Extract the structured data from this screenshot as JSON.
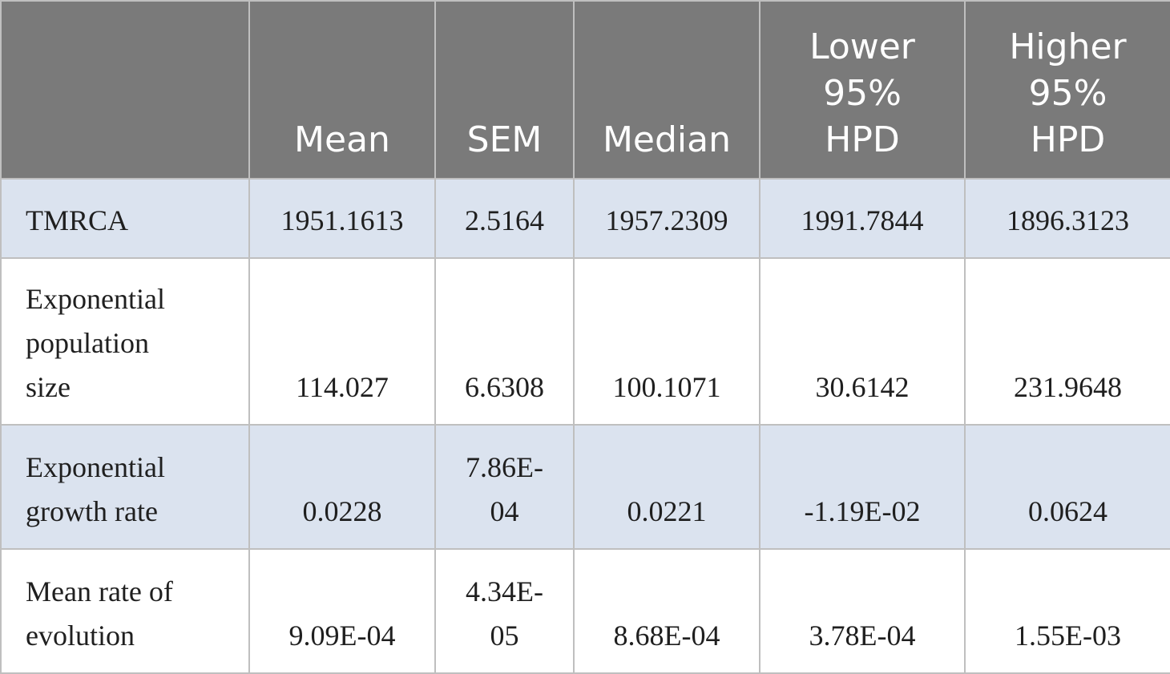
{
  "table": {
    "header": [
      [
        ""
      ],
      [
        "Mean"
      ],
      [
        "SEM"
      ],
      [
        "Median"
      ],
      [
        "Lower",
        "95%",
        "HPD"
      ],
      [
        "Higher",
        "95%",
        "HPD"
      ]
    ],
    "rows": [
      {
        "label": [
          "TMRCA"
        ],
        "cells": [
          [
            "1951.1613"
          ],
          [
            "2.5164"
          ],
          [
            "1957.2309"
          ],
          [
            "1991.7844"
          ],
          [
            "1896.3123"
          ]
        ]
      },
      {
        "label": [
          "Exponential",
          "population",
          "size"
        ],
        "cells": [
          [
            "114.027"
          ],
          [
            "6.6308"
          ],
          [
            "100.1071"
          ],
          [
            "30.6142"
          ],
          [
            "231.9648"
          ]
        ]
      },
      {
        "label": [
          "Exponential",
          "growth rate"
        ],
        "cells": [
          [
            "0.0228"
          ],
          [
            "7.86E-",
            "04"
          ],
          [
            "0.0221"
          ],
          [
            "-1.19E-02"
          ],
          [
            "0.0624"
          ]
        ]
      },
      {
        "label": [
          "Mean rate of",
          "evolution"
        ],
        "cells": [
          [
            "9.09E-04"
          ],
          [
            "4.34E-",
            "05"
          ],
          [
            "8.68E-04"
          ],
          [
            "3.78E-04"
          ],
          [
            "1.55E-03"
          ]
        ]
      }
    ]
  },
  "colors": {
    "header_bg": "#7a7a7a",
    "header_text": "#ffffff",
    "shaded_row_bg": "#dbe3ef",
    "plain_row_bg": "#ffffff",
    "border": "#bfbfbf"
  }
}
